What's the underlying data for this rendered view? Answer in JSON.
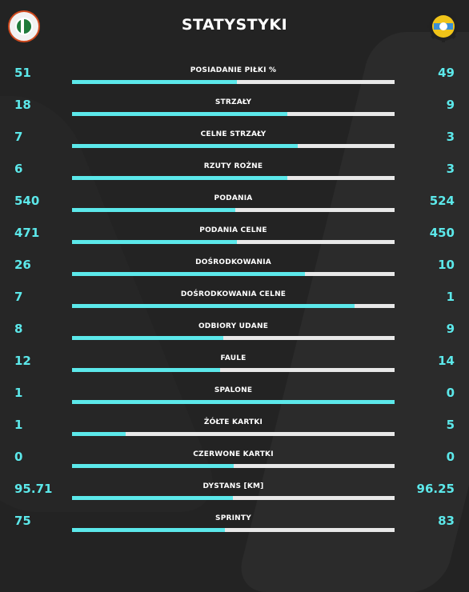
{
  "header": {
    "title": "STATYSTYKI",
    "home_logo_icon": "zaglebie-lubin-crest-icon",
    "away_logo_icon": "stal-mielec-crest-icon"
  },
  "colors": {
    "accent": "#5ce8ea",
    "background": "#232323",
    "bar_track": "#e8e8e8"
  },
  "stats": [
    {
      "label": "POSIADANIE PIŁKI %",
      "home": "51",
      "away": "49",
      "home_share": 0.51
    },
    {
      "label": "STRZAŁY",
      "home": "18",
      "away": "9",
      "home_share": 0.667
    },
    {
      "label": "CELNE STRZAŁY",
      "home": "7",
      "away": "3",
      "home_share": 0.7
    },
    {
      "label": "RZUTY ROŻNE",
      "home": "6",
      "away": "3",
      "home_share": 0.667
    },
    {
      "label": "PODANIA",
      "home": "540",
      "away": "524",
      "home_share": 0.507
    },
    {
      "label": "PODANIA CELNE",
      "home": "471",
      "away": "450",
      "home_share": 0.511
    },
    {
      "label": "DOŚRODKOWANIA",
      "home": "26",
      "away": "10",
      "home_share": 0.722
    },
    {
      "label": "DOŚRODKOWANIA CELNE",
      "home": "7",
      "away": "1",
      "home_share": 0.875
    },
    {
      "label": "ODBIORY UDANE",
      "home": "8",
      "away": "9",
      "home_share": 0.47
    },
    {
      "label": "FAULE",
      "home": "12",
      "away": "14",
      "home_share": 0.46
    },
    {
      "label": "SPALONE",
      "home": "1",
      "away": "0",
      "home_share": 1.0
    },
    {
      "label": "ŻÓŁTE KARTKI",
      "home": "1",
      "away": "5",
      "home_share": 0.167
    },
    {
      "label": "CZERWONE KARTKI",
      "home": "0",
      "away": "0",
      "home_share": 0.5
    },
    {
      "label": "DYSTANS [KM]",
      "home": "95.71",
      "away": "96.25",
      "home_share": 0.499
    },
    {
      "label": "SPRINTY",
      "home": "75",
      "away": "83",
      "home_share": 0.475
    }
  ]
}
